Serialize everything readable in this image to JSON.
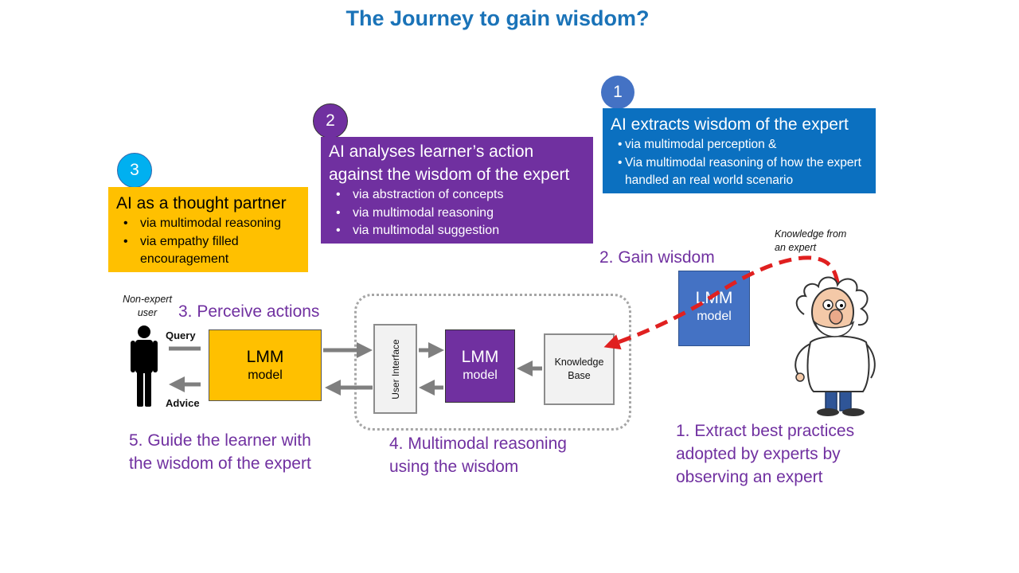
{
  "title": "The Journey to gain wisdom?",
  "colors": {
    "blue": "#0b70c0",
    "purple": "#7030a0",
    "yellow": "#ffc000",
    "arrow_gray": "#7f7f7f",
    "red": "#e02020"
  },
  "steps": [
    {
      "number": "1",
      "heading": "AI extracts wisdom of the expert",
      "bullets": [
        "via multimodal perception &",
        "Via multimodal reasoning of how the expert handled an real world scenario"
      ]
    },
    {
      "number": "2",
      "heading": "AI analyses learner’s action against the wisdom of the expert",
      "bullets": [
        "via abstraction of concepts",
        "via multimodal reasoning",
        "via multimodal suggestion"
      ]
    },
    {
      "number": "3",
      "heading": "AI as a thought partner",
      "bullets": [
        "via multimodal reasoning",
        "via empathy filled encouragement"
      ]
    }
  ],
  "labels": {
    "gain_wisdom": "2. Gain wisdom",
    "perceive_actions": "3. Perceive actions",
    "extract": "1. Extract best practices adopted by experts by observing an expert",
    "multimodal_reasoning": "4. Multimodal reasoning using the wisdom",
    "guide": "5. Guide the learner with the wisdom of the expert",
    "knowledge_from_expert": "Knowledge from an expert",
    "non_expert_user": "Non-expert user",
    "query": "Query",
    "advice": "Advice"
  },
  "nodes": {
    "lmm_user": {
      "line1": "LMM",
      "line2": "model"
    },
    "lmm_center": {
      "line1": "LMM",
      "line2": "model"
    },
    "lmm_expert": {
      "line1": "LMM",
      "line2": "model"
    },
    "user_interface": "User Interface",
    "knowledge_base": "Knowledge Base"
  }
}
